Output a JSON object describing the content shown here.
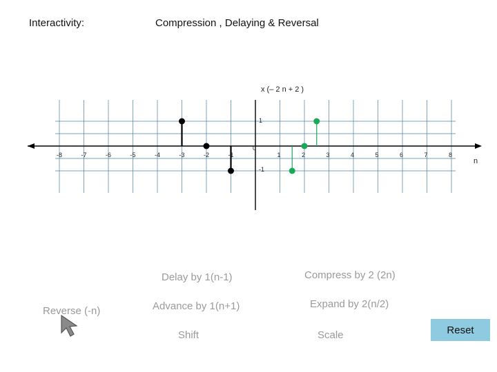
{
  "header": {
    "interactivity_label": "Interactivity:",
    "title": "Compression , Delaying & Reversal"
  },
  "plot": {
    "expression": "x (– 2 n + 2 )",
    "n_label": "n",
    "y_tick_pos": "1",
    "y_tick_neg": "-1",
    "x_ticks": [
      "-8",
      "-7",
      "-6",
      "-5",
      "-4",
      "-3",
      "-2",
      "-1",
      "0",
      "1",
      "2",
      "3",
      "4",
      "5",
      "6",
      "7",
      "8"
    ]
  },
  "chart_data": {
    "type": "scatter",
    "xlabel": "n",
    "series": [
      {
        "color": "#000000",
        "x": [
          -3,
          -2,
          -1
        ],
        "values": [
          1,
          0,
          -1
        ]
      },
      {
        "color": "#1aa85a",
        "x": [
          1.5,
          2,
          2.5
        ],
        "values": [
          -1,
          0,
          1
        ]
      }
    ],
    "xlim": [
      -8,
      8
    ],
    "ylim": [
      -1,
      1
    ]
  },
  "operations": {
    "reverse": "Reverse (-n)",
    "delay": "Delay by 1(n-1)",
    "advance": "Advance by 1(n+1)",
    "shift": "Shift",
    "compress": "Compress by 2 (2n)",
    "expand": "Expand by 2(n/2)",
    "scale": "Scale",
    "reset": "Reset"
  },
  "icons": {
    "cursor": "mouse-pointer-icon"
  },
  "colors": {
    "reset_bg": "#8ecae0",
    "green": "#1aa85a",
    "grid": "#4a7fa0"
  }
}
